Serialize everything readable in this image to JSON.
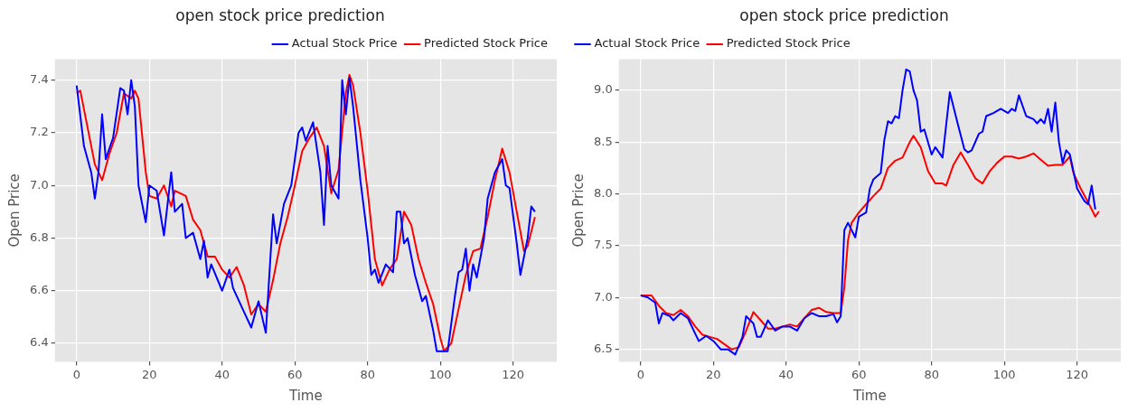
{
  "chart_data": [
    {
      "type": "line",
      "title": "open stock price prediction",
      "xlabel": "Time",
      "ylabel": "Open Price",
      "xlim": [
        -6,
        132
      ],
      "xticks": [
        0,
        20,
        40,
        60,
        80,
        100,
        120
      ],
      "ylim": [
        6.33,
        7.48
      ],
      "yticks": [
        {
          "value": 6.4,
          "label": "6.4"
        },
        {
          "value": 6.6,
          "label": "6.6"
        },
        {
          "value": 6.8,
          "label": "6.8"
        },
        {
          "value": 7.0,
          "label": "7.0"
        },
        {
          "value": 7.2,
          "label": "7.2"
        },
        {
          "value": 7.4,
          "label": "7.4"
        }
      ],
      "grid": true,
      "legend": "top right",
      "marker": "none",
      "series": [
        {
          "name": "Actual Stock Price",
          "color": "#0000ff",
          "x": [
            0,
            2,
            4,
            5,
            6,
            7,
            8,
            10,
            12,
            13,
            14,
            15,
            16,
            17,
            19,
            20,
            22,
            24,
            26,
            27,
            29,
            30,
            32,
            34,
            35,
            36,
            37,
            40,
            42,
            43,
            46,
            48,
            50,
            51,
            52,
            54,
            55,
            57,
            59,
            60,
            61,
            62,
            63,
            65,
            67,
            68,
            69,
            70,
            72,
            73,
            74,
            75,
            76,
            78,
            80,
            81,
            82,
            83,
            85,
            87,
            88,
            89,
            90,
            91,
            93,
            95,
            96,
            98,
            99,
            102,
            104,
            105,
            106,
            107,
            108,
            109,
            110,
            112,
            113,
            115,
            117,
            118,
            119,
            121,
            122,
            124,
            125,
            126
          ],
          "values": [
            7.38,
            7.15,
            7.05,
            6.95,
            7.05,
            7.27,
            7.1,
            7.18,
            7.37,
            7.36,
            7.27,
            7.4,
            7.3,
            7.0,
            6.86,
            7.0,
            6.98,
            6.81,
            7.05,
            6.9,
            6.93,
            6.8,
            6.82,
            6.72,
            6.79,
            6.65,
            6.7,
            6.6,
            6.68,
            6.61,
            6.52,
            6.46,
            6.56,
            6.5,
            6.44,
            6.89,
            6.78,
            6.93,
            7.0,
            7.1,
            7.2,
            7.22,
            7.17,
            7.24,
            7.05,
            6.85,
            7.15,
            7.0,
            6.95,
            7.4,
            7.27,
            7.41,
            7.3,
            7.02,
            6.8,
            6.66,
            6.68,
            6.63,
            6.7,
            6.67,
            6.9,
            6.9,
            6.78,
            6.8,
            6.66,
            6.56,
            6.58,
            6.45,
            6.37,
            6.37,
            6.58,
            6.67,
            6.68,
            6.76,
            6.6,
            6.7,
            6.65,
            6.8,
            6.95,
            7.05,
            7.1,
            7.0,
            6.99,
            6.78,
            6.66,
            6.8,
            6.92,
            6.9
          ]
        },
        {
          "name": "Predicted Stock Price",
          "color": "#ff0000",
          "x": [
            0,
            1,
            3,
            5,
            7,
            9,
            11,
            13,
            15,
            16,
            17,
            19,
            20,
            22,
            24,
            26,
            27,
            30,
            32,
            34,
            36,
            38,
            40,
            42,
            44,
            46,
            48,
            50,
            52,
            54,
            56,
            58,
            60,
            62,
            64,
            66,
            68,
            70,
            72,
            74,
            75,
            76,
            78,
            80,
            82,
            84,
            86,
            88,
            90,
            92,
            94,
            96,
            98,
            100,
            101,
            103,
            105,
            107,
            109,
            111,
            113,
            115,
            117,
            119,
            121,
            123,
            124,
            126
          ],
          "values": [
            7.35,
            7.36,
            7.22,
            7.08,
            7.02,
            7.12,
            7.2,
            7.35,
            7.33,
            7.36,
            7.33,
            7.05,
            6.96,
            6.95,
            7.0,
            6.92,
            6.98,
            6.96,
            6.87,
            6.83,
            6.73,
            6.73,
            6.68,
            6.65,
            6.69,
            6.62,
            6.51,
            6.55,
            6.52,
            6.64,
            6.78,
            6.88,
            7.0,
            7.13,
            7.18,
            7.22,
            7.15,
            6.97,
            7.06,
            7.35,
            7.42,
            7.38,
            7.2,
            6.98,
            6.72,
            6.62,
            6.68,
            6.72,
            6.9,
            6.85,
            6.72,
            6.63,
            6.55,
            6.42,
            6.37,
            6.4,
            6.53,
            6.66,
            6.75,
            6.76,
            6.88,
            7.02,
            7.14,
            7.05,
            6.9,
            6.75,
            6.77,
            6.88
          ]
        }
      ]
    },
    {
      "type": "line",
      "title": "open stock price prediction",
      "xlabel": "Time",
      "ylabel": "Open Price",
      "xlim": [
        -6,
        132
      ],
      "xticks": [
        0,
        20,
        40,
        60,
        80,
        100,
        120
      ],
      "ylim": [
        6.38,
        9.3
      ],
      "yticks": [
        {
          "value": 6.5,
          "label": "6.5"
        },
        {
          "value": 7.0,
          "label": "7.0"
        },
        {
          "value": 7.5,
          "label": "7.5"
        },
        {
          "value": 8.0,
          "label": "8.0"
        },
        {
          "value": 8.5,
          "label": "8.5"
        },
        {
          "value": 9.0,
          "label": "9.0"
        }
      ],
      "grid": true,
      "legend": "top left",
      "marker": "none",
      "series": [
        {
          "name": "Actual Stock Price",
          "color": "#0000ff",
          "x": [
            0,
            2,
            4,
            5,
            6,
            8,
            9,
            11,
            13,
            15,
            16,
            18,
            20,
            22,
            24,
            26,
            28,
            29,
            31,
            32,
            33,
            35,
            37,
            39,
            41,
            43,
            45,
            47,
            49,
            51,
            53,
            54,
            55,
            56,
            57,
            59,
            60,
            62,
            63,
            64,
            66,
            67,
            68,
            69,
            70,
            71,
            72,
            73,
            74,
            75,
            76,
            77,
            78,
            80,
            81,
            83,
            85,
            87,
            89,
            90,
            91,
            93,
            94,
            95,
            97,
            99,
            101,
            102,
            103,
            104,
            106,
            108,
            109,
            110,
            111,
            112,
            113,
            114,
            115,
            116,
            117,
            118,
            120,
            122,
            123,
            124,
            125
          ],
          "values": [
            7.02,
            7.0,
            6.95,
            6.75,
            6.85,
            6.82,
            6.78,
            6.85,
            6.8,
            6.65,
            6.58,
            6.63,
            6.58,
            6.5,
            6.5,
            6.45,
            6.62,
            6.82,
            6.75,
            6.62,
            6.62,
            6.78,
            6.68,
            6.72,
            6.72,
            6.68,
            6.8,
            6.85,
            6.82,
            6.82,
            6.84,
            6.76,
            6.82,
            7.65,
            7.72,
            7.58,
            7.78,
            7.82,
            8.05,
            8.14,
            8.2,
            8.52,
            8.7,
            8.68,
            8.75,
            8.73,
            9.0,
            9.2,
            9.18,
            9.0,
            8.9,
            8.6,
            8.62,
            8.38,
            8.45,
            8.35,
            8.98,
            8.7,
            8.43,
            8.4,
            8.42,
            8.58,
            8.6,
            8.75,
            8.78,
            8.82,
            8.78,
            8.82,
            8.8,
            8.95,
            8.75,
            8.72,
            8.68,
            8.72,
            8.68,
            8.82,
            8.6,
            8.88,
            8.5,
            8.3,
            8.42,
            8.38,
            8.05,
            7.93,
            7.9,
            8.08,
            7.85
          ]
        },
        {
          "name": "Predicted Stock Price",
          "color": "#ff0000",
          "x": [
            0,
            3,
            5,
            7,
            9,
            11,
            13,
            15,
            17,
            19,
            21,
            23,
            25,
            27,
            29,
            31,
            33,
            35,
            37,
            39,
            41,
            43,
            45,
            47,
            49,
            51,
            53,
            55,
            56,
            57,
            58,
            60,
            62,
            64,
            66,
            68,
            70,
            72,
            74,
            75,
            77,
            79,
            81,
            83,
            84,
            86,
            88,
            90,
            92,
            94,
            96,
            98,
            100,
            102,
            104,
            106,
            108,
            110,
            112,
            114,
            116,
            118,
            119,
            121,
            123,
            125,
            126
          ],
          "values": [
            7.02,
            7.02,
            6.92,
            6.85,
            6.83,
            6.88,
            6.82,
            6.72,
            6.64,
            6.62,
            6.6,
            6.55,
            6.5,
            6.52,
            6.68,
            6.86,
            6.78,
            6.7,
            6.7,
            6.72,
            6.74,
            6.72,
            6.8,
            6.88,
            6.9,
            6.86,
            6.85,
            6.85,
            7.1,
            7.55,
            7.72,
            7.82,
            7.9,
            7.98,
            8.05,
            8.25,
            8.32,
            8.35,
            8.5,
            8.56,
            8.45,
            8.22,
            8.1,
            8.1,
            8.08,
            8.28,
            8.4,
            8.28,
            8.15,
            8.1,
            8.22,
            8.3,
            8.36,
            8.36,
            8.34,
            8.36,
            8.39,
            8.33,
            8.27,
            8.28,
            8.28,
            8.36,
            8.2,
            8.05,
            7.92,
            7.78,
            7.83
          ]
        }
      ]
    }
  ]
}
